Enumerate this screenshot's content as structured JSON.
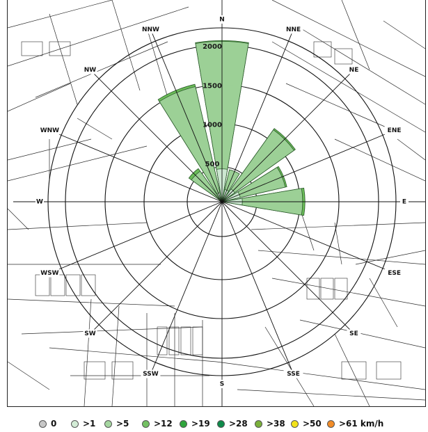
{
  "chart_data": {
    "type": "wind-rose",
    "directions": [
      "N",
      "NNE",
      "NE",
      "ENE",
      "E",
      "ESE",
      "SE",
      "SSE",
      "S",
      "SSW",
      "SW",
      "WSW",
      "W",
      "WNW",
      "NW",
      "NNW"
    ],
    "radial_ticks": [
      "500",
      "1000",
      "1500",
      "2000"
    ],
    "radial_max": 2500,
    "series": [
      {
        "name": ">1",
        "color": "#cfe8d4",
        "values": [
          420,
          160,
          200,
          240,
          260,
          0,
          0,
          0,
          0,
          0,
          0,
          0,
          0,
          0,
          60,
          120
        ]
      },
      {
        "name": ">5",
        "color": "#9fd19a",
        "values": [
          2050,
          420,
          1130,
          830,
          1030,
          0,
          0,
          0,
          0,
          0,
          0,
          0,
          0,
          0,
          480,
          1510
        ]
      },
      {
        "name": ">12",
        "color": "#63b84f",
        "values": [
          2060,
          420,
          1150,
          850,
          1060,
          0,
          0,
          0,
          0,
          0,
          0,
          0,
          0,
          0,
          520,
          1540
        ]
      }
    ],
    "legend": [
      {
        "label": "0",
        "color": "#c7c7c7"
      },
      {
        "label": ">1",
        "color": "#d3ecd6"
      },
      {
        "label": ">5",
        "color": "#a5d6a0"
      },
      {
        "label": ">12",
        "color": "#74c163"
      },
      {
        "label": ">19",
        "color": "#2fa53c"
      },
      {
        "label": ">28",
        "color": "#0f8a4a"
      },
      {
        "label": ">38",
        "color": "#7ab03a"
      },
      {
        "label": ">50",
        "color": "#f2e21a"
      },
      {
        "label": ">61 km/h",
        "color": "#f28c28"
      }
    ]
  }
}
